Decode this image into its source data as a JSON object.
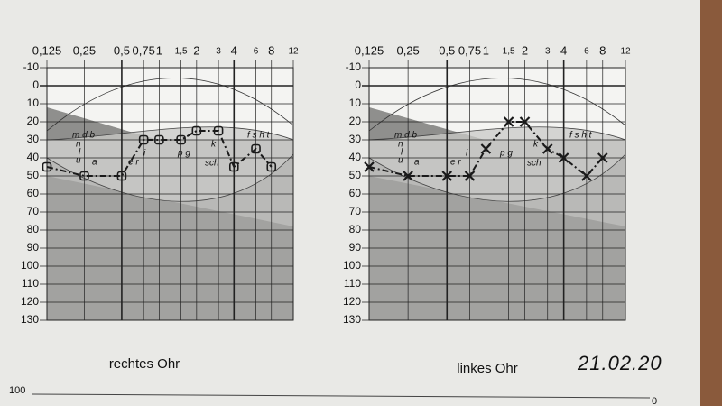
{
  "chart_data": [
    {
      "type": "line",
      "title": "rechtes Ohr",
      "xscale": "log",
      "y_inverted": true,
      "grid": true,
      "xlim": [
        0.125,
        12
      ],
      "ylim": [
        -10,
        130
      ],
      "xticks": [
        {
          "value": 0.125,
          "label": "0,125"
        },
        {
          "value": 0.25,
          "label": "0,25"
        },
        {
          "value": 0.5,
          "label": "0,5"
        },
        {
          "value": 0.75,
          "label": "0,75"
        },
        1,
        {
          "value": 1.5,
          "label": "1,5"
        },
        2,
        3,
        4,
        6,
        8,
        12
      ],
      "yticks": [
        -10,
        0,
        10,
        20,
        30,
        40,
        50,
        60,
        70,
        80,
        90,
        100,
        110,
        120,
        130
      ],
      "x": [
        0.125,
        0.25,
        0.5,
        0.75,
        1,
        1.5,
        2,
        3,
        4,
        6,
        8
      ],
      "series": [
        {
          "color": "#1a1a1a",
          "marker": "square",
          "values": [
            45,
            50,
            50,
            30,
            30,
            30,
            25,
            25,
            45,
            35,
            45
          ]
        }
      ],
      "annotations": [
        "m d b",
        "n",
        "l",
        "u",
        "a",
        "e r",
        "i",
        "p g",
        "k",
        "f s h t",
        "sch"
      ]
    },
    {
      "type": "line",
      "title": "linkes Ohr",
      "xscale": "log",
      "y_inverted": true,
      "grid": true,
      "xlim": [
        0.125,
        12
      ],
      "ylim": [
        -10,
        130
      ],
      "xticks": [
        {
          "value": 0.125,
          "label": "0,125"
        },
        {
          "value": 0.25,
          "label": "0,25"
        },
        {
          "value": 0.5,
          "label": "0,5"
        },
        {
          "value": 0.75,
          "label": "0,75"
        },
        1,
        {
          "value": 1.5,
          "label": "1,5"
        },
        2,
        3,
        4,
        6,
        8,
        12
      ],
      "yticks": [
        -10,
        0,
        10,
        20,
        30,
        40,
        50,
        60,
        70,
        80,
        90,
        100,
        110,
        120,
        130
      ],
      "x": [
        0.125,
        0.25,
        0.5,
        0.75,
        1,
        1.5,
        2,
        3,
        4,
        6,
        8
      ],
      "series": [
        {
          "color": "#1a1a1a",
          "marker": "x",
          "values": [
            45,
            50,
            50,
            50,
            35,
            20,
            20,
            35,
            40,
            50,
            40
          ]
        }
      ],
      "annotations": [
        "m d b",
        "n",
        "l",
        "u",
        "a",
        "e r",
        "i",
        "p g",
        "k",
        "f s h t",
        "sch"
      ]
    }
  ],
  "page_text": {
    "date": "21.02.20",
    "next_chart_top": "100",
    "next_chart_right": "0"
  }
}
